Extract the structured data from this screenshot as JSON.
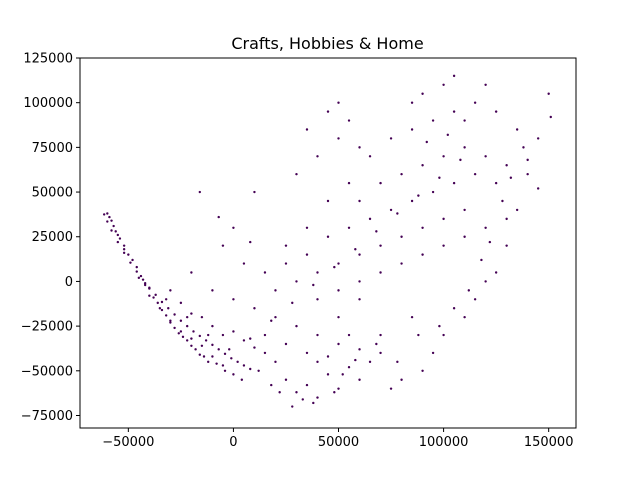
{
  "chart_data": {
    "type": "scatter",
    "title": "Crafts, Hobbies & Home",
    "xlabel": "",
    "ylabel": "",
    "xlim": [
      -73000,
      163000
    ],
    "ylim": [
      -82000,
      125000
    ],
    "xticks": [
      -50000,
      0,
      50000,
      100000,
      150000
    ],
    "yticks": [
      -75000,
      -50000,
      -25000,
      0,
      25000,
      50000,
      75000,
      100000,
      125000
    ],
    "xtick_labels": [
      "−50000",
      "0",
      "50000",
      "100000",
      "150000"
    ],
    "ytick_labels": [
      "−75000",
      "−50000",
      "−25000",
      "0",
      "25000",
      "50000",
      "75000",
      "100000",
      "125000"
    ],
    "grid": false,
    "marker_color": "#440154",
    "series": [
      {
        "values": [
          [
            -61500,
            37500
          ],
          [
            -60000,
            33500
          ],
          [
            -58000,
            28500
          ],
          [
            -55000,
            22000
          ],
          [
            -52000,
            16000
          ],
          [
            -49000,
            10500
          ],
          [
            -46000,
            5500
          ],
          [
            -43000,
            1000
          ],
          [
            -40000,
            -3500
          ],
          [
            -37000,
            -7500
          ],
          [
            -34000,
            -11500
          ],
          [
            -31000,
            -15000
          ],
          [
            -28000,
            -18500
          ],
          [
            -25000,
            -22000
          ],
          [
            -22000,
            -25000
          ],
          [
            -19000,
            -28000
          ],
          [
            -16000,
            -30500
          ],
          [
            -13000,
            -33000
          ],
          [
            -10000,
            -35500
          ],
          [
            -7000,
            -38000
          ],
          [
            -4000,
            -40500
          ],
          [
            -1000,
            -43000
          ],
          [
            2000,
            -45000
          ],
          [
            5000,
            -47000
          ],
          [
            8000,
            -49000
          ],
          [
            -45000,
            2000
          ],
          [
            -40000,
            -8000
          ],
          [
            -35000,
            -15000
          ],
          [
            -30000,
            -22000
          ],
          [
            -25000,
            -28000
          ],
          [
            -20000,
            -32000
          ],
          [
            -15000,
            -36000
          ],
          [
            -10000,
            -42000
          ],
          [
            -5000,
            -47000
          ],
          [
            0,
            -52000
          ],
          [
            -30000,
            -5000
          ],
          [
            -25000,
            -12000
          ],
          [
            -20000,
            -18000
          ],
          [
            -15000,
            -20000
          ],
          [
            -10000,
            -25000
          ],
          [
            -5000,
            -30000
          ],
          [
            0,
            -28000
          ],
          [
            5000,
            -33000
          ],
          [
            10000,
            -37000
          ],
          [
            15000,
            -40000
          ],
          [
            -20000,
            5000
          ],
          [
            -10000,
            -5000
          ],
          [
            0,
            -10000
          ],
          [
            10000,
            -15000
          ],
          [
            20000,
            -20000
          ],
          [
            30000,
            -25000
          ],
          [
            40000,
            -30000
          ],
          [
            50000,
            -35000
          ],
          [
            60000,
            -38000
          ],
          [
            70000,
            -40000
          ],
          [
            20000,
            -45000
          ],
          [
            25000,
            -55000
          ],
          [
            30000,
            -62000
          ],
          [
            35000,
            -58000
          ],
          [
            40000,
            -65000
          ],
          [
            45000,
            -52000
          ],
          [
            50000,
            -60000
          ],
          [
            55000,
            -48000
          ],
          [
            60000,
            -55000
          ],
          [
            65000,
            -45000
          ],
          [
            15000,
            -30000
          ],
          [
            25000,
            -35000
          ],
          [
            35000,
            -40000
          ],
          [
            45000,
            -42000
          ],
          [
            55000,
            -30000
          ],
          [
            20000,
            -5000
          ],
          [
            30000,
            0
          ],
          [
            40000,
            5000
          ],
          [
            50000,
            10000
          ],
          [
            60000,
            15000
          ],
          [
            70000,
            20000
          ],
          [
            80000,
            25000
          ],
          [
            90000,
            30000
          ],
          [
            100000,
            35000
          ],
          [
            110000,
            40000
          ],
          [
            25000,
            10000
          ],
          [
            35000,
            15000
          ],
          [
            45000,
            25000
          ],
          [
            55000,
            30000
          ],
          [
            65000,
            35000
          ],
          [
            75000,
            40000
          ],
          [
            85000,
            45000
          ],
          [
            95000,
            50000
          ],
          [
            105000,
            55000
          ],
          [
            115000,
            60000
          ],
          [
            40000,
            -10000
          ],
          [
            50000,
            -5000
          ],
          [
            60000,
            0
          ],
          [
            70000,
            5000
          ],
          [
            80000,
            10000
          ],
          [
            90000,
            15000
          ],
          [
            100000,
            20000
          ],
          [
            110000,
            25000
          ],
          [
            120000,
            30000
          ],
          [
            130000,
            35000
          ],
          [
            60000,
            45000
          ],
          [
            70000,
            55000
          ],
          [
            80000,
            60000
          ],
          [
            90000,
            65000
          ],
          [
            100000,
            70000
          ],
          [
            110000,
            75000
          ],
          [
            120000,
            70000
          ],
          [
            130000,
            65000
          ],
          [
            140000,
            60000
          ],
          [
            125000,
            55000
          ],
          [
            65000,
            70000
          ],
          [
            75000,
            80000
          ],
          [
            85000,
            85000
          ],
          [
            95000,
            90000
          ],
          [
            105000,
            95000
          ],
          [
            85000,
            100000
          ],
          [
            90000,
            105000
          ],
          [
            100000,
            110000
          ],
          [
            105000,
            115000
          ],
          [
            120000,
            110000
          ],
          [
            110000,
            90000
          ],
          [
            115000,
            100000
          ],
          [
            125000,
            95000
          ],
          [
            135000,
            85000
          ],
          [
            145000,
            80000
          ],
          [
            150000,
            105000
          ],
          [
            151000,
            92000
          ],
          [
            140000,
            68000
          ],
          [
            145000,
            52000
          ],
          [
            135000,
            40000
          ],
          [
            130000,
            20000
          ],
          [
            125000,
            5000
          ],
          [
            120000,
            0
          ],
          [
            115000,
            -10000
          ],
          [
            110000,
            -20000
          ],
          [
            100000,
            -30000
          ],
          [
            95000,
            -40000
          ],
          [
            90000,
            -50000
          ],
          [
            80000,
            -55000
          ],
          [
            75000,
            -60000
          ],
          [
            -16000,
            50000
          ],
          [
            -7000,
            36000
          ],
          [
            0,
            30000
          ],
          [
            8000,
            22000
          ],
          [
            10000,
            50000
          ],
          [
            30000,
            60000
          ],
          [
            40000,
            70000
          ],
          [
            50000,
            80000
          ],
          [
            55000,
            90000
          ],
          [
            60000,
            75000
          ],
          [
            35000,
            85000
          ],
          [
            45000,
            95000
          ],
          [
            50000,
            100000
          ],
          [
            55000,
            55000
          ],
          [
            45000,
            45000
          ],
          [
            -5000,
            20000
          ],
          [
            5000,
            10000
          ],
          [
            15000,
            5000
          ],
          [
            25000,
            20000
          ],
          [
            35000,
            30000
          ],
          [
            85000,
            -20000
          ],
          [
            70000,
            -30000
          ],
          [
            60000,
            -10000
          ],
          [
            50000,
            -20000
          ],
          [
            40000,
            -45000
          ],
          [
            -60000,
            38000
          ],
          [
            -59000,
            36000
          ],
          [
            -58000,
            34000
          ],
          [
            -57000,
            31000
          ],
          [
            -56000,
            28000
          ],
          [
            -54000,
            24000
          ],
          [
            -52000,
            20000
          ],
          [
            -50000,
            15000
          ],
          [
            -48000,
            12000
          ],
          [
            -46000,
            8000
          ],
          [
            -44000,
            3000
          ],
          [
            -42000,
            -1000
          ],
          [
            -40000,
            -4000
          ],
          [
            -38000,
            -9000
          ],
          [
            -36000,
            -12000
          ],
          [
            -34000,
            -16000
          ],
          [
            -32000,
            -19000
          ],
          [
            -30000,
            -23000
          ],
          [
            -28000,
            -26000
          ],
          [
            -26000,
            -29000
          ],
          [
            -24000,
            -31000
          ],
          [
            -22000,
            -33000
          ],
          [
            -20000,
            -36000
          ],
          [
            -18000,
            -38000
          ],
          [
            -16000,
            -41000
          ],
          [
            -14000,
            -42000
          ],
          [
            -12000,
            -45000
          ],
          [
            -8000,
            -46000
          ],
          [
            -4000,
            -50000
          ],
          [
            4000,
            -55000
          ],
          [
            12000,
            -50000
          ],
          [
            18000,
            -58000
          ],
          [
            22000,
            -62000
          ],
          [
            28000,
            -70000
          ],
          [
            33000,
            -66000
          ],
          [
            38000,
            -68000
          ],
          [
            48000,
            -62000
          ],
          [
            52000,
            -52000
          ],
          [
            58000,
            -44000
          ],
          [
            68000,
            -35000
          ],
          [
            78000,
            -45000
          ],
          [
            88000,
            -30000
          ],
          [
            98000,
            -25000
          ],
          [
            105000,
            -15000
          ],
          [
            112000,
            -5000
          ],
          [
            118000,
            12000
          ],
          [
            122000,
            22000
          ],
          [
            128000,
            45000
          ],
          [
            132000,
            58000
          ],
          [
            138000,
            75000
          ],
          [
            92000,
            78000
          ],
          [
            102000,
            82000
          ],
          [
            108000,
            68000
          ],
          [
            98000,
            58000
          ],
          [
            88000,
            48000
          ],
          [
            78000,
            38000
          ],
          [
            68000,
            28000
          ],
          [
            58000,
            18000
          ],
          [
            48000,
            8000
          ],
          [
            38000,
            -2000
          ],
          [
            28000,
            -12000
          ],
          [
            18000,
            -22000
          ],
          [
            8000,
            -32000
          ],
          [
            -2000,
            -38000
          ],
          [
            -12000,
            -30000
          ],
          [
            -22000,
            -20000
          ],
          [
            -32000,
            -10000
          ],
          [
            -42000,
            -2000
          ],
          [
            -52000,
            18000
          ],
          [
            -55000,
            26000
          ]
        ]
      }
    ]
  }
}
